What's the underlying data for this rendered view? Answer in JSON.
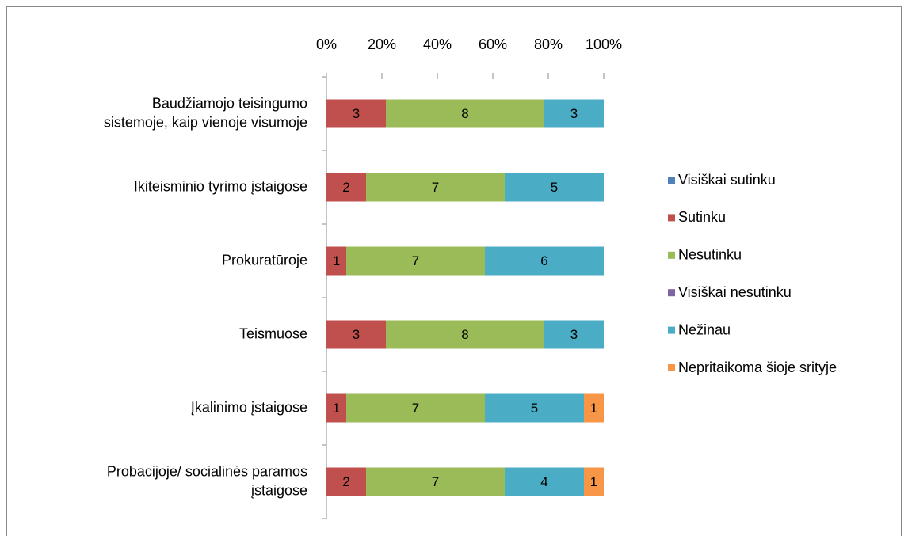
{
  "chart_data": {
    "type": "bar",
    "orientation": "horizontal",
    "stacking": "percent",
    "categories": [
      "Baudžiamojo teisingumo\nsistemoje, kaip vienoje visumoje",
      "Ikiteisminio tyrimo įstaigose",
      "Prokuratūroje",
      "Teismuose",
      "Įkalinimo įstaigose",
      "Probacijoje/ socialinės paramos\nįstaigose"
    ],
    "series": [
      {
        "name": "Visiškai sutinku",
        "color": "#4f81bd",
        "values": [
          0,
          0,
          0,
          0,
          0,
          0
        ]
      },
      {
        "name": "Sutinku",
        "color": "#c0504d",
        "values": [
          3,
          2,
          1,
          3,
          1,
          2
        ]
      },
      {
        "name": "Nesutinku",
        "color": "#9bbb59",
        "values": [
          8,
          7,
          7,
          8,
          7,
          7
        ]
      },
      {
        "name": "Visiškai nesutinku",
        "color": "#8064a2",
        "values": [
          0,
          0,
          0,
          0,
          0,
          0
        ]
      },
      {
        "name": "Nežinau",
        "color": "#4bacc6",
        "values": [
          3,
          5,
          6,
          3,
          5,
          4
        ]
      },
      {
        "name": "Nepritaikoma šioje srityje",
        "color": "#f79646",
        "values": [
          0,
          0,
          0,
          0,
          1,
          1
        ]
      }
    ],
    "xlim": [
      0,
      100
    ],
    "xticks": [
      {
        "value": 0,
        "label": "0%"
      },
      {
        "value": 20,
        "label": "20%"
      },
      {
        "value": 40,
        "label": "40%"
      },
      {
        "value": 60,
        "label": "60%"
      },
      {
        "value": 80,
        "label": "80%"
      },
      {
        "value": 100,
        "label": "100%"
      }
    ],
    "legend": "right"
  }
}
